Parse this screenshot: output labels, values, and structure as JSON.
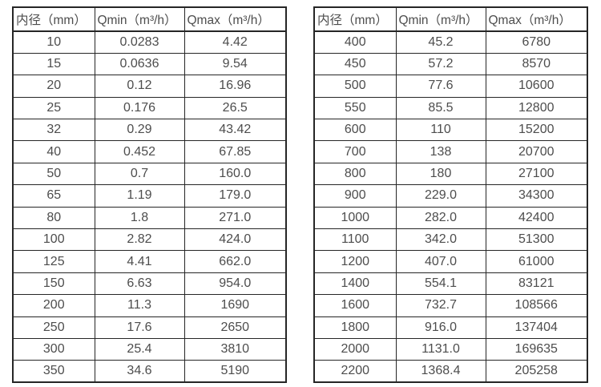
{
  "page": {
    "background_color": "#ffffff",
    "text_color": "#4d4d4d",
    "border_color": "#262626"
  },
  "tables": [
    {
      "name": "flow-rate-table-small-diameter",
      "headers": [
        "内径（mm）",
        "Qmin（m³/h）",
        "Qmax（m³/h）"
      ],
      "rows": [
        [
          "10",
          "0.0283",
          "4.42"
        ],
        [
          "15",
          "0.0636",
          "9.54"
        ],
        [
          "20",
          "0.12",
          "16.96"
        ],
        [
          "25",
          "0.176",
          "26.5"
        ],
        [
          "32",
          "0.29",
          "43.42"
        ],
        [
          "40",
          "0.452",
          "67.85"
        ],
        [
          "50",
          "0.7",
          "160.0"
        ],
        [
          "65",
          "1.19",
          "179.0"
        ],
        [
          "80",
          "1.8",
          "271.0"
        ],
        [
          "100",
          "2.82",
          "424.0"
        ],
        [
          "125",
          "4.41",
          "662.0"
        ],
        [
          "150",
          "6.63",
          "954.0"
        ],
        [
          "200",
          "11.3",
          "1690"
        ],
        [
          "250",
          "17.6",
          "2650"
        ],
        [
          "300",
          "25.4",
          "3810"
        ],
        [
          "350",
          "34.6",
          "5190"
        ]
      ]
    },
    {
      "name": "flow-rate-table-large-diameter",
      "headers": [
        "内径（mm）",
        "Qmin（m³/h）",
        "Qmax（m³/h）"
      ],
      "rows": [
        [
          "400",
          "45.2",
          "6780"
        ],
        [
          "450",
          "57.2",
          "8570"
        ],
        [
          "500",
          "77.6",
          "10600"
        ],
        [
          "550",
          "85.5",
          "12800"
        ],
        [
          "600",
          "110",
          "15200"
        ],
        [
          "700",
          "138",
          "20700"
        ],
        [
          "800",
          "180",
          "27100"
        ],
        [
          "900",
          "229.0",
          "34300"
        ],
        [
          "1000",
          "282.0",
          "42400"
        ],
        [
          "1100",
          "342.0",
          "51300"
        ],
        [
          "1200",
          "407.0",
          "61000"
        ],
        [
          "1400",
          "554.1",
          "83121"
        ],
        [
          "1600",
          "732.7",
          "108566"
        ],
        [
          "1800",
          "916.0",
          "137404"
        ],
        [
          "2000",
          "1131.0",
          "169635"
        ],
        [
          "2200",
          "1368.4",
          "205258"
        ]
      ]
    }
  ]
}
